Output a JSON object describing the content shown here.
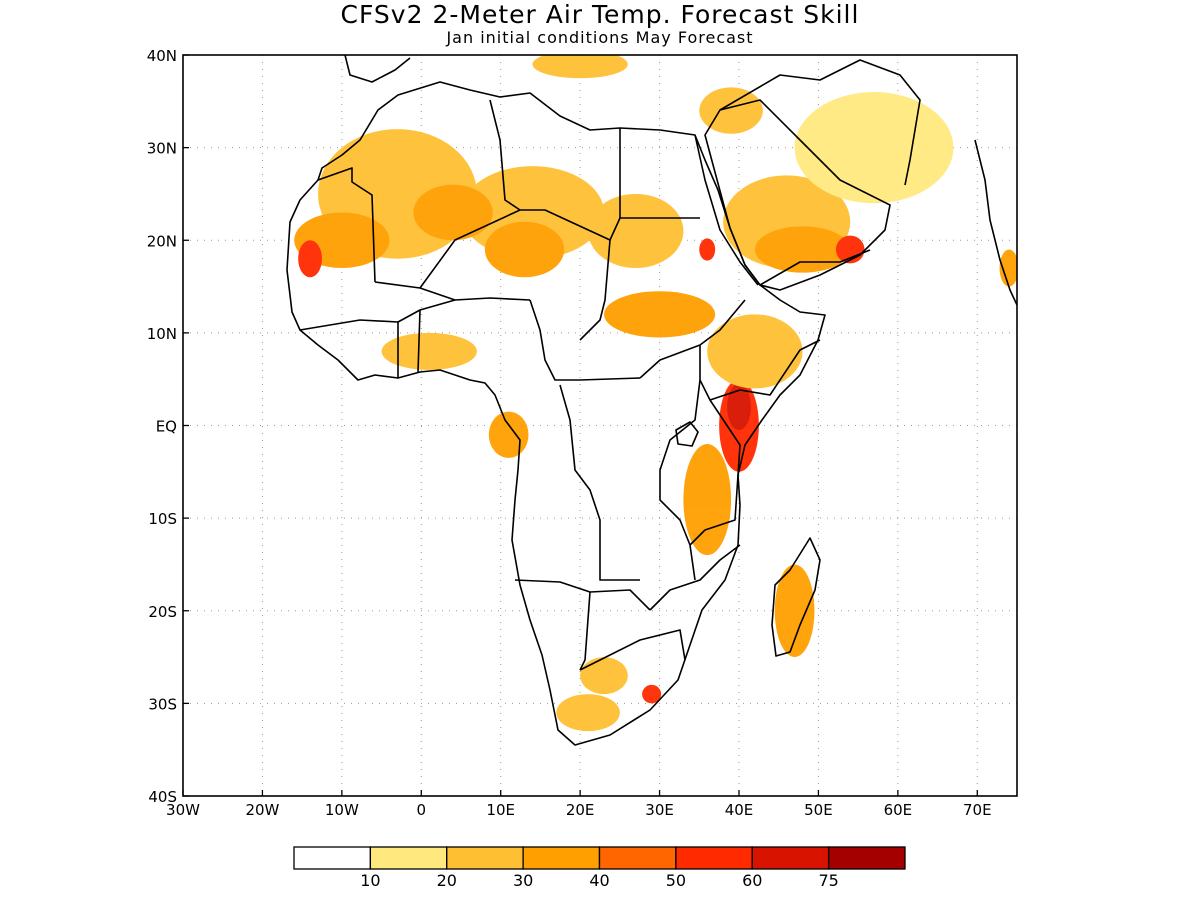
{
  "title": "CFSv2 2-Meter Air Temp. Forecast Skill",
  "subtitle": "Jan initial conditions   May Forecast",
  "map": {
    "lon_range": [
      -30,
      75
    ],
    "lat_range": [
      -40,
      40
    ],
    "lon_ticks": [
      {
        "value": -30,
        "label": "30W"
      },
      {
        "value": -20,
        "label": "20W"
      },
      {
        "value": -10,
        "label": "10W"
      },
      {
        "value": 0,
        "label": "0"
      },
      {
        "value": 10,
        "label": "10E"
      },
      {
        "value": 20,
        "label": "20E"
      },
      {
        "value": 30,
        "label": "30E"
      },
      {
        "value": 40,
        "label": "40E"
      },
      {
        "value": 50,
        "label": "50E"
      },
      {
        "value": 60,
        "label": "60E"
      },
      {
        "value": 70,
        "label": "70E"
      }
    ],
    "lat_ticks": [
      {
        "value": 40,
        "label": "40N"
      },
      {
        "value": 30,
        "label": "30N"
      },
      {
        "value": 20,
        "label": "20N"
      },
      {
        "value": 10,
        "label": "10N"
      },
      {
        "value": 0,
        "label": "EQ"
      },
      {
        "value": -10,
        "label": "10S"
      },
      {
        "value": -20,
        "label": "20S"
      },
      {
        "value": -30,
        "label": "30S"
      },
      {
        "value": -40,
        "label": "40S"
      }
    ],
    "grid": true
  },
  "colorbar": {
    "colors": [
      "#ffffff",
      "#ffe97f",
      "#ffbf33",
      "#ff9f00",
      "#ff6600",
      "#ff2a00",
      "#d81400",
      "#a50000"
    ],
    "labels": [
      "10",
      "20",
      "30",
      "40",
      "50",
      "60",
      "75"
    ]
  },
  "skill_regions": [
    {
      "lon": -3,
      "lat": 25,
      "rx": 10,
      "ry": 7,
      "level": 2
    },
    {
      "lon": 14,
      "lat": 23,
      "rx": 9,
      "ry": 5,
      "level": 2
    },
    {
      "lon": 27,
      "lat": 21,
      "rx": 6,
      "ry": 4,
      "level": 2
    },
    {
      "lon": 46,
      "lat": 22,
      "rx": 8,
      "ry": 5,
      "level": 2
    },
    {
      "lon": -10,
      "lat": 20,
      "rx": 6,
      "ry": 3,
      "level": 3
    },
    {
      "lon": 4,
      "lat": 23,
      "rx": 5,
      "ry": 3,
      "level": 3
    },
    {
      "lon": 13,
      "lat": 19,
      "rx": 5,
      "ry": 3,
      "level": 3
    },
    {
      "lon": 30,
      "lat": 12,
      "rx": 7,
      "ry": 2.5,
      "level": 3
    },
    {
      "lon": 48,
      "lat": 19,
      "rx": 6,
      "ry": 2.5,
      "level": 3
    },
    {
      "lon": -14,
      "lat": 18,
      "rx": 1.5,
      "ry": 2,
      "level": 5
    },
    {
      "lon": 54,
      "lat": 19,
      "rx": 1.8,
      "ry": 1.5,
      "level": 5
    },
    {
      "lon": 40,
      "lat": 0,
      "rx": 2.5,
      "ry": 5,
      "level": 5
    },
    {
      "lon": 36,
      "lat": 19,
      "rx": 1,
      "ry": 1.2,
      "level": 5
    },
    {
      "lon": 40,
      "lat": 2,
      "rx": 1.5,
      "ry": 2.5,
      "level": 6
    },
    {
      "lon": 42,
      "lat": 8,
      "rx": 6,
      "ry": 4,
      "level": 2
    },
    {
      "lon": 36,
      "lat": -8,
      "rx": 3,
      "ry": 6,
      "level": 3
    },
    {
      "lon": 11,
      "lat": -1,
      "rx": 2.5,
      "ry": 2.5,
      "level": 3
    },
    {
      "lon": 1,
      "lat": 8,
      "rx": 6,
      "ry": 2,
      "level": 2
    },
    {
      "lon": 47,
      "lat": -20,
      "rx": 2.5,
      "ry": 5,
      "level": 3
    },
    {
      "lon": 23,
      "lat": -27,
      "rx": 3,
      "ry": 2,
      "level": 2
    },
    {
      "lon": 21,
      "lat": -31,
      "rx": 4,
      "ry": 2,
      "level": 2
    },
    {
      "lon": 29,
      "lat": -29,
      "rx": 1.2,
      "ry": 1,
      "level": 5
    },
    {
      "lon": 57,
      "lat": 30,
      "rx": 10,
      "ry": 6,
      "level": 1
    },
    {
      "lon": 20,
      "lat": 39,
      "rx": 6,
      "ry": 1.5,
      "level": 2
    },
    {
      "lon": 39,
      "lat": 34,
      "rx": 4,
      "ry": 2.5,
      "level": 2
    },
    {
      "lon": 74,
      "lat": 17,
      "rx": 1.2,
      "ry": 2,
      "level": 3
    }
  ]
}
